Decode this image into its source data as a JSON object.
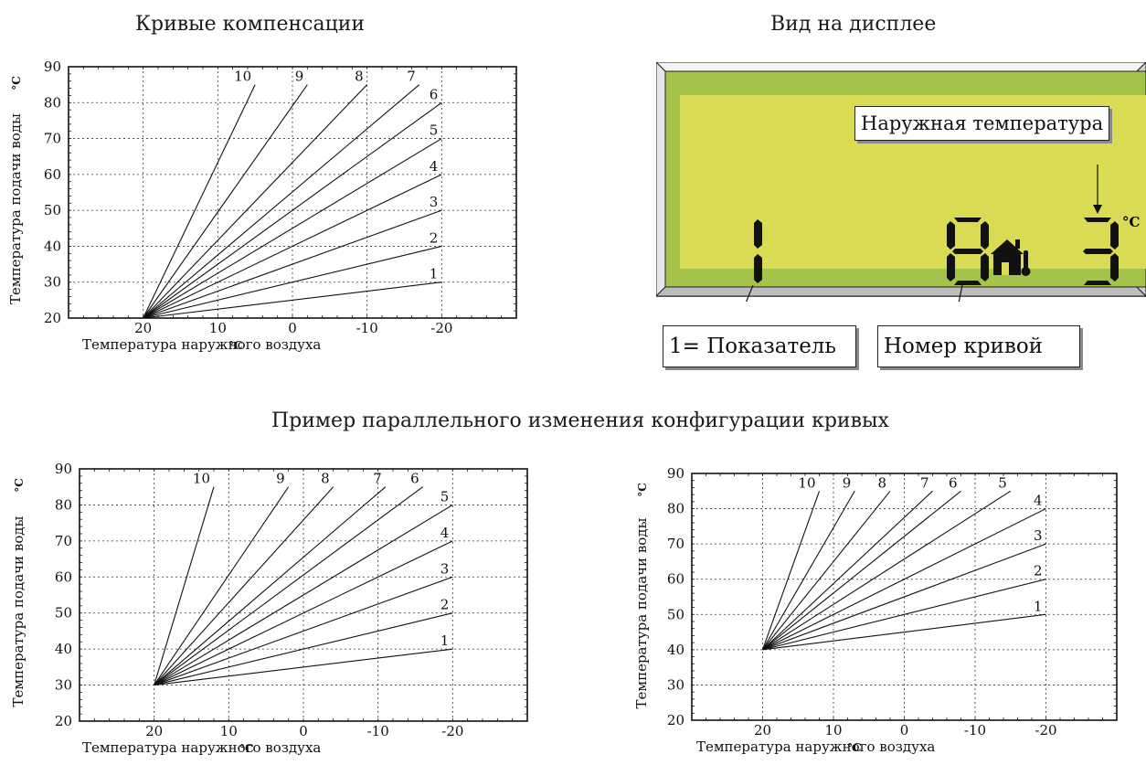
{
  "headings": {
    "curves": "Кривые компенсации",
    "display": "Вид на дисплее",
    "example": "Пример параллельного изменения конфигурации кривых"
  },
  "display": {
    "colors": {
      "frame": "#a3c34a",
      "screen": "#d9db55"
    },
    "index_digit": "1",
    "curve_digit": "8",
    "temp_digit": "3",
    "temp_unit": "°C",
    "icon": "house-thermometer-icon",
    "callouts": {
      "outdoor": "Наружная температура",
      "index": "1= Показатель",
      "curve": "Номер кривой"
    }
  },
  "chart_data": [
    {
      "type": "line",
      "xlabel": "Температура наружного воздуха",
      "ylabel": "Температура подачи воды",
      "unit": "°C",
      "x_ticks": [
        "20",
        "10",
        "0",
        "-10",
        "-20"
      ],
      "y_ticks": [
        "20",
        "30",
        "40",
        "50",
        "60",
        "70",
        "80",
        "90"
      ],
      "xlim": [
        30,
        -30
      ],
      "ylim": [
        20,
        90
      ],
      "origin": [
        20,
        20
      ],
      "series": [
        {
          "name": "1",
          "x": [
            20,
            -20
          ],
          "y": [
            20,
            30
          ]
        },
        {
          "name": "2",
          "x": [
            20,
            -20
          ],
          "y": [
            20,
            40
          ]
        },
        {
          "name": "3",
          "x": [
            20,
            -20
          ],
          "y": [
            20,
            50
          ]
        },
        {
          "name": "4",
          "x": [
            20,
            -20
          ],
          "y": [
            20,
            60
          ]
        },
        {
          "name": "5",
          "x": [
            20,
            -20
          ],
          "y": [
            20,
            70
          ]
        },
        {
          "name": "6",
          "x": [
            20,
            -20
          ],
          "y": [
            20,
            80
          ]
        },
        {
          "name": "7",
          "x": [
            20,
            -17
          ],
          "y": [
            20,
            85
          ]
        },
        {
          "name": "8",
          "x": [
            20,
            -10
          ],
          "y": [
            20,
            85
          ]
        },
        {
          "name": "9",
          "x": [
            20,
            -2
          ],
          "y": [
            20,
            85
          ]
        },
        {
          "name": "10",
          "x": [
            20,
            5
          ],
          "y": [
            20,
            85
          ]
        }
      ]
    },
    {
      "type": "line",
      "xlabel": "Температура наружного воздуха",
      "ylabel": "Температура подачи воды",
      "unit": "°C",
      "x_ticks": [
        "20",
        "10",
        "0",
        "-10",
        "-20"
      ],
      "y_ticks": [
        "20",
        "30",
        "40",
        "50",
        "60",
        "70",
        "80",
        "90"
      ],
      "xlim": [
        30,
        -30
      ],
      "ylim": [
        20,
        90
      ],
      "origin": [
        20,
        30
      ],
      "series": [
        {
          "name": "1",
          "x": [
            20,
            -20
          ],
          "y": [
            30,
            40
          ]
        },
        {
          "name": "2",
          "x": [
            20,
            -20
          ],
          "y": [
            30,
            50
          ]
        },
        {
          "name": "3",
          "x": [
            20,
            -20
          ],
          "y": [
            30,
            60
          ]
        },
        {
          "name": "4",
          "x": [
            20,
            -20
          ],
          "y": [
            30,
            70
          ]
        },
        {
          "name": "5",
          "x": [
            20,
            -20
          ],
          "y": [
            30,
            80
          ]
        },
        {
          "name": "6",
          "x": [
            20,
            -16
          ],
          "y": [
            30,
            85
          ]
        },
        {
          "name": "7",
          "x": [
            20,
            -11
          ],
          "y": [
            30,
            85
          ]
        },
        {
          "name": "8",
          "x": [
            20,
            -4
          ],
          "y": [
            30,
            85
          ]
        },
        {
          "name": "9",
          "x": [
            20,
            2
          ],
          "y": [
            30,
            85
          ]
        },
        {
          "name": "10",
          "x": [
            20,
            12
          ],
          "y": [
            30,
            85
          ]
        }
      ]
    },
    {
      "type": "line",
      "xlabel": "Температура наружного воздуха",
      "ylabel": "Температура подачи воды",
      "unit": "°C",
      "x_ticks": [
        "20",
        "10",
        "0",
        "-10",
        "-20"
      ],
      "y_ticks": [
        "20",
        "30",
        "40",
        "50",
        "60",
        "70",
        "80",
        "90"
      ],
      "xlim": [
        30,
        -30
      ],
      "ylim": [
        20,
        90
      ],
      "origin": [
        20,
        40
      ],
      "series": [
        {
          "name": "1",
          "x": [
            20,
            -20
          ],
          "y": [
            40,
            50
          ]
        },
        {
          "name": "2",
          "x": [
            20,
            -20
          ],
          "y": [
            40,
            60
          ]
        },
        {
          "name": "3",
          "x": [
            20,
            -20
          ],
          "y": [
            40,
            70
          ]
        },
        {
          "name": "4",
          "x": [
            20,
            -20
          ],
          "y": [
            40,
            80
          ]
        },
        {
          "name": "5",
          "x": [
            20,
            -15
          ],
          "y": [
            40,
            85
          ]
        },
        {
          "name": "6",
          "x": [
            20,
            -8
          ],
          "y": [
            40,
            85
          ]
        },
        {
          "name": "7",
          "x": [
            20,
            -4
          ],
          "y": [
            40,
            85
          ]
        },
        {
          "name": "8",
          "x": [
            20,
            2
          ],
          "y": [
            40,
            85
          ]
        },
        {
          "name": "9",
          "x": [
            20,
            7
          ],
          "y": [
            40,
            85
          ]
        },
        {
          "name": "10",
          "x": [
            20,
            12
          ],
          "y": [
            40,
            85
          ]
        }
      ]
    }
  ]
}
